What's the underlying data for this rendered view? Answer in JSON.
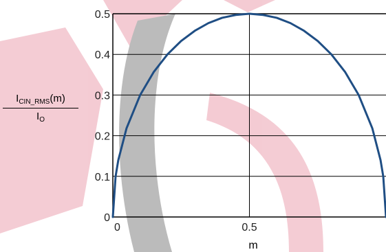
{
  "chart_data": {
    "type": "line",
    "title": "",
    "xlabel": "m",
    "ylabel": {
      "numerator_main": "I",
      "numerator_sub": "CIN_RMS",
      "numerator_tail": "(m)",
      "denominator_main": "I",
      "denominator_sub": "O"
    },
    "xlim": [
      0,
      1
    ],
    "ylim": [
      0,
      0.5
    ],
    "x_ticks": [
      "0",
      "0.5"
    ],
    "x_tick_values": [
      0,
      0.5
    ],
    "y_ticks": [
      "0",
      "0.1",
      "0.2",
      "0.3",
      "0.4",
      "0.5"
    ],
    "y_tick_values": [
      0,
      0.1,
      0.2,
      0.3,
      0.4,
      0.5
    ],
    "grid": true,
    "series": [
      {
        "name": "",
        "color": "#1f4e84",
        "x": [
          0,
          0.01,
          0.02,
          0.05,
          0.1,
          0.15,
          0.2,
          0.25,
          0.3,
          0.35,
          0.4,
          0.45,
          0.5,
          0.55,
          0.6,
          0.65,
          0.7,
          0.75,
          0.8,
          0.85,
          0.9,
          0.95,
          0.98,
          0.99,
          1
        ],
        "y": [
          0,
          0.0995,
          0.14,
          0.218,
          0.3,
          0.357,
          0.4,
          0.433,
          0.458,
          0.477,
          0.49,
          0.497,
          0.5,
          0.497,
          0.49,
          0.477,
          0.458,
          0.433,
          0.4,
          0.357,
          0.3,
          0.218,
          0.14,
          0.0995,
          0
        ]
      }
    ]
  },
  "colors": {
    "grid": "#000000",
    "line": "#1f4e84",
    "watermark_red": "#f3c6cf",
    "watermark_gray": "#a8a8a8"
  }
}
